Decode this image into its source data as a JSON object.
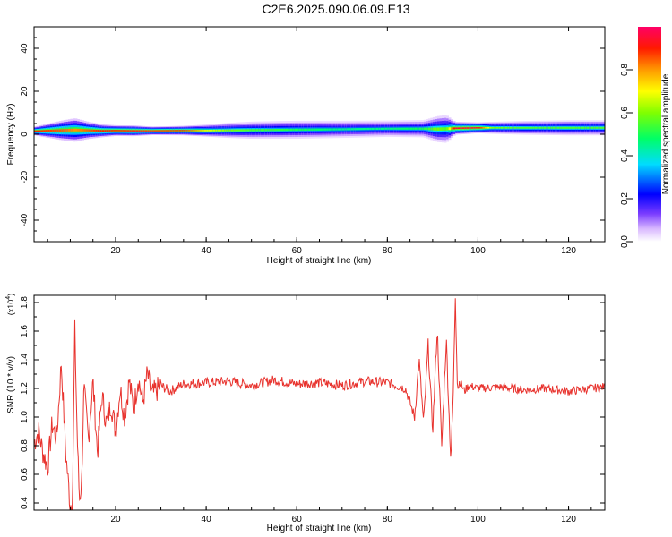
{
  "figure": {
    "title": "C2E6.2025.090.06.09.E13"
  },
  "colors": {
    "line": "#e8332e",
    "frame": "#000000",
    "max_band": "#e32024"
  },
  "chart_data": [
    {
      "type": "heatmap",
      "xlabel": "Height of straight line (km)",
      "ylabel": "Frequency (Hz)",
      "xlim": [
        2,
        128
      ],
      "ylim": [
        -50,
        50
      ],
      "xticks": [
        20,
        40,
        60,
        80,
        100,
        120
      ],
      "yticks": [
        -40,
        -20,
        0,
        20,
        40
      ],
      "grid": false,
      "colorbar": {
        "label": "Normalized spectral amplitude",
        "range": [
          0,
          1
        ],
        "ticks": [
          0,
          0.2,
          0.4,
          0.6,
          0.8
        ],
        "tick_labels": [
          "0.0",
          "0.2",
          "0.4",
          "0.6",
          "0.8"
        ],
        "colormap": "rainbow (white-violet → blue → cyan → green → yellow → red → magenta)"
      },
      "band": {
        "description": "spectral energy concentrated near the low positive frequencies",
        "x": [
          2,
          8,
          11,
          14,
          17,
          20,
          24,
          28,
          35,
          40,
          45,
          50,
          60,
          70,
          80,
          88,
          91,
          93,
          95,
          100,
          103,
          110,
          120,
          128
        ],
        "peak_hz": [
          1.5,
          1.8,
          2.0,
          1.8,
          1.6,
          1.7,
          1.6,
          1.6,
          1.7,
          1.7,
          1.8,
          1.9,
          2.1,
          2.3,
          2.6,
          2.6,
          2.4,
          2.5,
          2.8,
          3.0,
          3.0,
          3.0,
          3.0,
          3.0
        ],
        "half_width_hz": [
          2.0,
          4.5,
          5.5,
          4.0,
          3.0,
          2.5,
          2.5,
          2.0,
          2.2,
          2.8,
          3.5,
          4.0,
          4.2,
          4.0,
          3.8,
          4.0,
          6.0,
          6.5,
          3.0,
          2.5,
          2.8,
          3.2,
          3.5,
          3.5
        ],
        "peak_amplitude": [
          0.9,
          0.85,
          0.8,
          0.85,
          0.9,
          0.9,
          0.95,
          0.95,
          0.9,
          0.7,
          0.6,
          0.55,
          0.5,
          0.45,
          0.45,
          0.5,
          0.6,
          0.55,
          0.95,
          0.95,
          0.6,
          0.55,
          0.55,
          0.55
        ]
      }
    },
    {
      "type": "line",
      "xlabel": "Height of straight line (km)",
      "ylabel": "SNR (10 * v/v)",
      "yscale_label": "(x10",
      "yscale_exp": "4",
      "xlim": [
        2,
        128
      ],
      "ylim": [
        0.35,
        1.85
      ],
      "xticks": [
        20,
        40,
        60,
        80,
        100,
        120
      ],
      "yticks": [
        0.4,
        0.6,
        0.8,
        1.0,
        1.2,
        1.4,
        1.6,
        1.8
      ],
      "ytick_labels": [
        "0.4",
        "0.6",
        "0.8",
        "1.0",
        "1.2",
        "1.4",
        "1.6",
        "1.8"
      ],
      "grid": false,
      "series": [
        {
          "x": [
            2,
            3,
            4,
            5,
            6,
            7,
            8,
            9,
            10,
            10.5,
            11,
            11.5,
            12,
            12.5,
            13,
            14,
            15,
            16,
            17,
            18,
            19,
            20,
            21,
            22,
            23,
            24,
            25,
            26,
            27,
            28,
            30,
            32,
            35,
            40,
            45,
            50,
            55,
            60,
            65,
            70,
            75,
            80,
            84,
            86,
            87,
            88,
            89,
            90,
            91,
            92,
            93,
            94,
            94.5,
            95,
            95.5,
            96,
            97,
            98,
            100,
            105,
            110,
            115,
            120,
            125,
            128
          ],
          "y": [
            0.82,
            0.9,
            0.75,
            0.65,
            0.95,
            0.85,
            1.38,
            0.75,
            0.38,
            0.45,
            1.6,
            0.9,
            0.42,
            0.55,
            1.2,
            0.85,
            1.25,
            0.75,
            1.15,
            0.95,
            1.1,
            0.9,
            1.2,
            1.0,
            1.25,
            1.05,
            1.28,
            1.1,
            1.3,
            1.15,
            1.22,
            1.18,
            1.23,
            1.24,
            1.25,
            1.22,
            1.26,
            1.23,
            1.24,
            1.22,
            1.25,
            1.24,
            1.2,
            1.0,
            1.4,
            0.95,
            1.5,
            0.9,
            1.62,
            0.8,
            1.55,
            0.7,
            1.1,
            1.85,
            1.2,
            1.25,
            1.18,
            1.22,
            1.2,
            1.21,
            1.19,
            1.2,
            1.18,
            1.2,
            1.21
          ]
        }
      ]
    }
  ]
}
